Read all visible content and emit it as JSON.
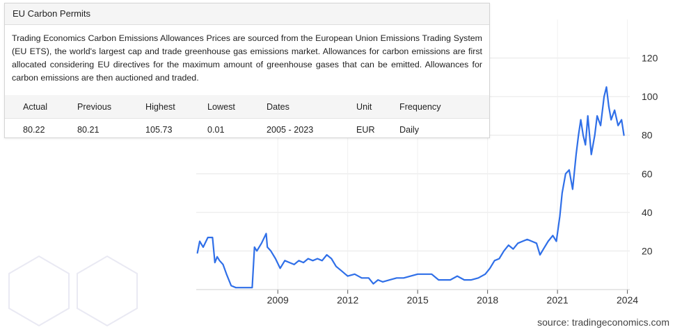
{
  "panel": {
    "title": "EU Carbon Permits",
    "description": "Trading Economics Carbon Emissions Allowances Prices are sourced from the European Union Emissions Trading System (EU ETS), the world's largest cap and trade greenhouse gas emissions market. Allowances for carbon emissions are first allocated considering EU directives for the maximum amount of greenhouse gases that can be emitted. Allowances for carbon emissions are then auctioned and traded.",
    "headers": [
      "Actual",
      "Previous",
      "Highest",
      "Lowest",
      "Dates",
      "Unit",
      "Frequency"
    ],
    "values": [
      "80.22",
      "80.21",
      "105.73",
      "0.01",
      "2005 - 2023",
      "EUR",
      "Daily"
    ]
  },
  "source": "source: tradingeconomics.com",
  "colors": {
    "line": "#2f6fe8",
    "grid": "#e6e6e6",
    "logo": "#e9e9f3"
  },
  "chart_data": {
    "type": "line",
    "x_ticks": [
      "2009",
      "2012",
      "2015",
      "2018",
      "2021",
      "2024"
    ],
    "y_ticks": [
      20,
      40,
      60,
      80,
      100,
      120
    ],
    "xlim": [
      2005.5,
      2024.4
    ],
    "ylim": [
      0,
      140
    ],
    "grid": true,
    "series": [
      {
        "x": [
          2005.55,
          2005.65,
          2005.8,
          2006.0,
          2006.2,
          2006.3,
          2006.4,
          2006.5,
          2006.65,
          2006.8,
          2007.0,
          2007.2,
          2007.4,
          2007.7,
          2007.9,
          2008.0,
          2008.1,
          2008.3,
          2008.5,
          2008.55,
          2008.7,
          2008.9,
          2009.1,
          2009.3,
          2009.5,
          2009.7,
          2009.9,
          2010.1,
          2010.3,
          2010.5,
          2010.7,
          2010.9,
          2011.1,
          2011.3,
          2011.5,
          2011.7,
          2011.9,
          2012.0,
          2012.3,
          2012.6,
          2012.9,
          2013.1,
          2013.3,
          2013.5,
          2013.8,
          2014.1,
          2014.4,
          2014.7,
          2015.0,
          2015.3,
          2015.6,
          2015.9,
          2016.1,
          2016.4,
          2016.7,
          2017.0,
          2017.3,
          2017.6,
          2017.9,
          2018.1,
          2018.3,
          2018.5,
          2018.7,
          2018.9,
          2019.1,
          2019.3,
          2019.5,
          2019.7,
          2019.9,
          2020.1,
          2020.25,
          2020.4,
          2020.6,
          2020.8,
          2020.95,
          2021.1,
          2021.2,
          2021.35,
          2021.5,
          2021.65,
          2021.8,
          2021.9,
          2022.0,
          2022.1,
          2022.2,
          2022.3,
          2022.45,
          2022.6,
          2022.7,
          2022.85,
          2023.0,
          2023.1,
          2023.2,
          2023.3,
          2023.45,
          2023.6,
          2023.75,
          2023.85
        ],
        "y": [
          19,
          25,
          22,
          27,
          27,
          14,
          17,
          15,
          13,
          8,
          2,
          1,
          1,
          1,
          1,
          22,
          20,
          24,
          29,
          22,
          20,
          16,
          11,
          15,
          14,
          13,
          15,
          14,
          16,
          15,
          16,
          15,
          18,
          16,
          12,
          10,
          8,
          7,
          8,
          6,
          6,
          3,
          5,
          4,
          5,
          6,
          6,
          7,
          8,
          8,
          8,
          5,
          5,
          5,
          7,
          5,
          5,
          6,
          8,
          11,
          15,
          16,
          20,
          23,
          21,
          24,
          25,
          26,
          25,
          24,
          18,
          21,
          25,
          28,
          25,
          38,
          50,
          60,
          62,
          52,
          70,
          80,
          88,
          80,
          75,
          90,
          70,
          80,
          90,
          85,
          100,
          105,
          95,
          88,
          93,
          85,
          88,
          80
        ]
      }
    ]
  }
}
